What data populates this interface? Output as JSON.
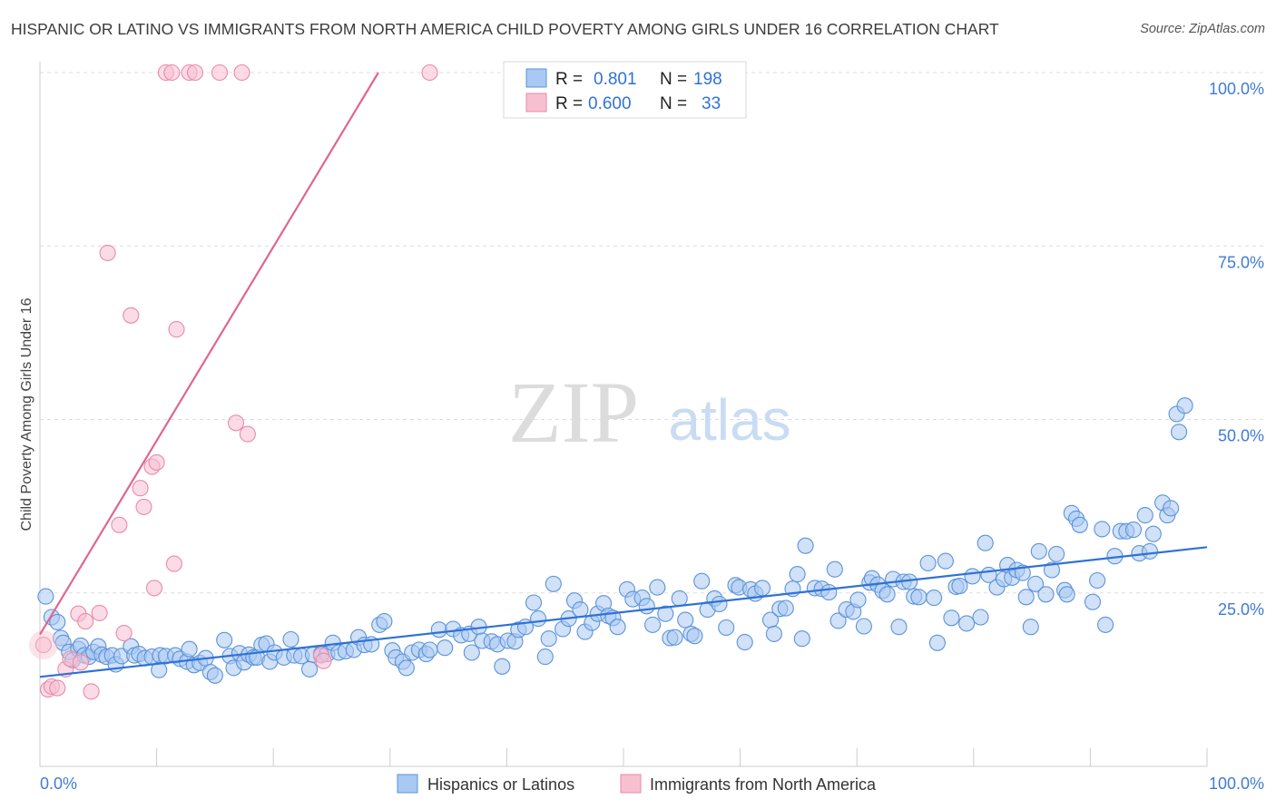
{
  "title": "HISPANIC OR LATINO VS IMMIGRANTS FROM NORTH AMERICA CHILD POVERTY AMONG GIRLS UNDER 16 CORRELATION CHART",
  "source": "Source: ZipAtlas.com",
  "watermark": {
    "zip": "ZIP",
    "atlas": "atlas"
  },
  "legend_stats": [
    {
      "r_label": "R =",
      "r_value": "0.801",
      "n_label": "N =",
      "n_value": "198"
    },
    {
      "r_label": "R =",
      "r_value": "0.600",
      "n_label": "N =",
      "n_value": "33"
    }
  ],
  "colors": {
    "blue_fill": "#a9c9f2",
    "blue_stroke": "#5b93d9",
    "blue_line": "#2f72d6",
    "pink_fill": "#f7c0d1",
    "pink_stroke": "#e98aa8",
    "pink_line": "#e0668f",
    "tick_text": "#3f7bd6",
    "grid": "#dddddd",
    "axis": "#cccccc"
  },
  "chart_data": {
    "type": "scatter",
    "title": "HISPANIC OR LATINO VS IMMIGRANTS FROM NORTH AMERICA CHILD POVERTY AMONG GIRLS UNDER 16 CORRELATION CHART",
    "xlabel": "",
    "ylabel": "Child Poverty Among Girls Under 16",
    "xlim": [
      0,
      100
    ],
    "ylim": [
      0,
      100
    ],
    "x_tick_labels": [
      "0.0%",
      "100.0%"
    ],
    "y_tick_labels": [
      {
        "value": 25,
        "label": "25.0%"
      },
      {
        "value": 50,
        "label": "50.0%"
      },
      {
        "value": 75,
        "label": "75.0%"
      },
      {
        "value": 100,
        "label": "100.0%"
      }
    ],
    "grid": true,
    "legend_position": "bottom",
    "series": [
      {
        "name": "Hispanics or Latinos",
        "color": "#a9c9f2",
        "trend": {
          "x": [
            0,
            100
          ],
          "y": [
            12.9,
            31.6
          ]
        },
        "points": [
          [
            0.5,
            24.5
          ],
          [
            1.0,
            21.5
          ],
          [
            1.5,
            20.8
          ],
          [
            1.8,
            18.5
          ],
          [
            2.0,
            17.8
          ],
          [
            2.5,
            16.5
          ],
          [
            2.8,
            15.3
          ],
          [
            3.3,
            16.9
          ],
          [
            3.5,
            17.4
          ],
          [
            3.8,
            16.0
          ],
          [
            4.2,
            15.8
          ],
          [
            4.6,
            16.5
          ],
          [
            5.0,
            17.3
          ],
          [
            5.3,
            16.1
          ],
          [
            5.7,
            15.8
          ],
          [
            6.2,
            16.0
          ],
          [
            6.5,
            14.7
          ],
          [
            7.0,
            15.9
          ],
          [
            7.8,
            17.3
          ],
          [
            8.1,
            16.0
          ],
          [
            8.5,
            16.2
          ],
          [
            9.0,
            15.6
          ],
          [
            9.6,
            15.8
          ],
          [
            10.3,
            16.0
          ],
          [
            10.2,
            13.9
          ],
          [
            10.8,
            15.9
          ],
          [
            11.6,
            16.0
          ],
          [
            12.0,
            15.5
          ],
          [
            12.6,
            15.1
          ],
          [
            12.8,
            16.9
          ],
          [
            13.2,
            14.6
          ],
          [
            13.7,
            14.9
          ],
          [
            14.2,
            15.6
          ],
          [
            14.6,
            13.6
          ],
          [
            15.0,
            13.1
          ],
          [
            15.8,
            18.2
          ],
          [
            16.3,
            15.9
          ],
          [
            16.6,
            14.2
          ],
          [
            17.1,
            16.3
          ],
          [
            17.5,
            15.0
          ],
          [
            17.9,
            16.1
          ],
          [
            18.3,
            15.7
          ],
          [
            18.6,
            15.7
          ],
          [
            19.0,
            17.5
          ],
          [
            19.4,
            17.7
          ],
          [
            19.7,
            15.1
          ],
          [
            20.1,
            16.4
          ],
          [
            20.9,
            15.7
          ],
          [
            21.5,
            18.3
          ],
          [
            21.8,
            16.0
          ],
          [
            22.4,
            15.9
          ],
          [
            23.1,
            14.0
          ],
          [
            23.4,
            16.1
          ],
          [
            24.1,
            16.2
          ],
          [
            24.6,
            16.2
          ],
          [
            25.1,
            17.8
          ],
          [
            25.6,
            16.4
          ],
          [
            26.2,
            16.6
          ],
          [
            26.9,
            16.8
          ],
          [
            27.3,
            18.6
          ],
          [
            27.8,
            17.5
          ],
          [
            28.4,
            17.6
          ],
          [
            29.1,
            20.4
          ],
          [
            29.5,
            20.9
          ],
          [
            30.2,
            16.7
          ],
          [
            30.5,
            15.7
          ],
          [
            31.1,
            15.1
          ],
          [
            31.4,
            14.2
          ],
          [
            31.9,
            16.4
          ],
          [
            32.5,
            16.8
          ],
          [
            33.1,
            16.2
          ],
          [
            33.4,
            16.8
          ],
          [
            34.2,
            19.7
          ],
          [
            34.7,
            17.1
          ],
          [
            35.4,
            19.8
          ],
          [
            36.1,
            18.9
          ],
          [
            36.8,
            19.1
          ],
          [
            37.0,
            16.4
          ],
          [
            37.6,
            20.1
          ],
          [
            37.9,
            18.1
          ],
          [
            38.7,
            18.0
          ],
          [
            39.2,
            17.6
          ],
          [
            39.6,
            14.4
          ],
          [
            40.1,
            18.1
          ],
          [
            40.7,
            18.0
          ],
          [
            41.0,
            19.7
          ],
          [
            41.6,
            20.1
          ],
          [
            42.3,
            23.6
          ],
          [
            42.7,
            21.3
          ],
          [
            43.3,
            15.8
          ],
          [
            43.6,
            18.4
          ],
          [
            44.0,
            26.3
          ],
          [
            44.8,
            19.8
          ],
          [
            45.3,
            21.3
          ],
          [
            45.8,
            23.9
          ],
          [
            46.3,
            22.6
          ],
          [
            46.7,
            19.4
          ],
          [
            47.3,
            20.7
          ],
          [
            47.8,
            22.0
          ],
          [
            48.3,
            23.5
          ],
          [
            48.7,
            21.7
          ],
          [
            49.1,
            21.4
          ],
          [
            49.5,
            20.1
          ],
          [
            50.3,
            25.5
          ],
          [
            50.8,
            24.1
          ],
          [
            51.6,
            24.3
          ],
          [
            52.0,
            23.1
          ],
          [
            52.5,
            20.4
          ],
          [
            52.9,
            25.8
          ],
          [
            53.6,
            22.0
          ],
          [
            54.0,
            18.5
          ],
          [
            54.4,
            18.6
          ],
          [
            54.8,
            24.2
          ],
          [
            55.3,
            21.1
          ],
          [
            55.8,
            19.1
          ],
          [
            56.1,
            18.8
          ],
          [
            56.7,
            26.7
          ],
          [
            57.2,
            22.6
          ],
          [
            57.8,
            24.2
          ],
          [
            58.2,
            23.4
          ],
          [
            58.8,
            20.0
          ],
          [
            59.6,
            26.1
          ],
          [
            59.9,
            25.8
          ],
          [
            60.4,
            17.9
          ],
          [
            60.9,
            25.5
          ],
          [
            61.3,
            24.9
          ],
          [
            61.9,
            25.7
          ],
          [
            62.6,
            21.1
          ],
          [
            62.9,
            19.1
          ],
          [
            63.4,
            22.7
          ],
          [
            63.9,
            22.8
          ],
          [
            64.5,
            25.6
          ],
          [
            64.9,
            27.7
          ],
          [
            65.3,
            18.4
          ],
          [
            65.6,
            31.8
          ],
          [
            66.4,
            25.7
          ],
          [
            67.0,
            25.6
          ],
          [
            67.6,
            25.1
          ],
          [
            68.1,
            28.4
          ],
          [
            68.4,
            21.0
          ],
          [
            69.1,
            22.6
          ],
          [
            69.7,
            22.3
          ],
          [
            70.1,
            24.0
          ],
          [
            70.6,
            20.2
          ],
          [
            71.1,
            26.5
          ],
          [
            71.3,
            27.1
          ],
          [
            71.8,
            26.2
          ],
          [
            72.2,
            25.3
          ],
          [
            72.6,
            24.8
          ],
          [
            73.1,
            27.0
          ],
          [
            73.6,
            20.1
          ],
          [
            74.0,
            26.6
          ],
          [
            74.5,
            26.6
          ],
          [
            74.9,
            24.5
          ],
          [
            75.3,
            24.4
          ],
          [
            76.1,
            29.3
          ],
          [
            76.6,
            24.3
          ],
          [
            76.9,
            17.8
          ],
          [
            77.6,
            29.6
          ],
          [
            78.1,
            21.4
          ],
          [
            78.5,
            25.9
          ],
          [
            78.8,
            26.0
          ],
          [
            79.4,
            20.6
          ],
          [
            79.9,
            27.4
          ],
          [
            80.6,
            21.5
          ],
          [
            81.0,
            32.2
          ],
          [
            81.3,
            27.6
          ],
          [
            82.0,
            25.8
          ],
          [
            82.6,
            27.0
          ],
          [
            82.9,
            29.0
          ],
          [
            83.3,
            27.2
          ],
          [
            83.7,
            28.3
          ],
          [
            84.2,
            27.9
          ],
          [
            84.5,
            24.4
          ],
          [
            84.9,
            20.1
          ],
          [
            85.3,
            26.3
          ],
          [
            85.6,
            31.0
          ],
          [
            86.2,
            24.8
          ],
          [
            86.7,
            28.3
          ],
          [
            87.1,
            30.6
          ],
          [
            87.8,
            25.4
          ],
          [
            88.0,
            24.8
          ],
          [
            88.4,
            36.5
          ],
          [
            88.8,
            35.7
          ],
          [
            89.1,
            34.8
          ],
          [
            90.2,
            23.7
          ],
          [
            90.6,
            26.8
          ],
          [
            91.0,
            34.2
          ],
          [
            91.3,
            20.4
          ],
          [
            92.1,
            30.3
          ],
          [
            92.6,
            33.9
          ],
          [
            93.1,
            33.9
          ],
          [
            93.7,
            34.1
          ],
          [
            94.2,
            30.7
          ],
          [
            94.7,
            36.2
          ],
          [
            95.1,
            31.0
          ],
          [
            95.4,
            33.5
          ],
          [
            96.2,
            38.0
          ],
          [
            96.6,
            36.2
          ],
          [
            96.9,
            37.2
          ],
          [
            97.4,
            50.8
          ],
          [
            97.6,
            48.2
          ],
          [
            98.1,
            52.0
          ]
        ]
      },
      {
        "name": "Immigrants from North America",
        "color": "#f7c0d1",
        "trend": {
          "x": [
            0,
            29
          ],
          "y": [
            19.0,
            100
          ]
        },
        "points": [
          [
            0.3,
            17.5
          ],
          [
            0.7,
            11.1
          ],
          [
            1.0,
            11.5
          ],
          [
            1.5,
            11.3
          ],
          [
            2.2,
            14.0
          ],
          [
            2.6,
            15.5
          ],
          [
            3.3,
            22.0
          ],
          [
            3.5,
            15.0
          ],
          [
            3.9,
            20.9
          ],
          [
            4.4,
            10.8
          ],
          [
            5.1,
            22.1
          ],
          [
            5.8,
            74.0
          ],
          [
            6.8,
            34.8
          ],
          [
            7.2,
            19.2
          ],
          [
            7.8,
            65.0
          ],
          [
            8.6,
            40.1
          ],
          [
            8.9,
            37.4
          ],
          [
            9.6,
            43.2
          ],
          [
            9.8,
            25.7
          ],
          [
            10.0,
            43.8
          ],
          [
            11.5,
            29.2
          ],
          [
            11.7,
            63.0
          ],
          [
            10.8,
            100
          ],
          [
            11.3,
            100
          ],
          [
            12.8,
            100
          ],
          [
            13.3,
            100
          ],
          [
            15.4,
            100
          ],
          [
            17.3,
            100
          ],
          [
            33.4,
            100
          ],
          [
            16.8,
            49.5
          ],
          [
            17.8,
            47.9
          ],
          [
            24.1,
            16.0
          ],
          [
            24.3,
            15.2
          ]
        ]
      }
    ]
  }
}
